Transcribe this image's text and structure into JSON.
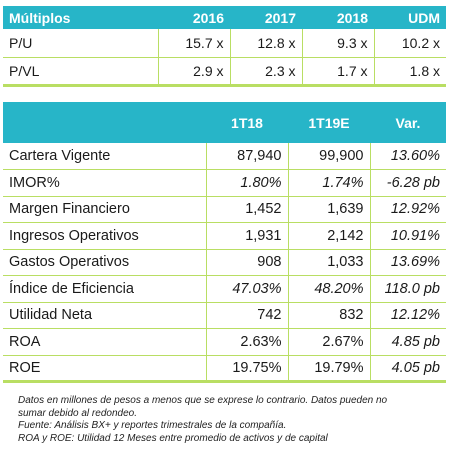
{
  "multiples_table": {
    "headers": [
      "Múltiplos",
      "2016",
      "2017",
      "2018",
      "UDM"
    ],
    "rows": [
      {
        "label": "P/U",
        "values": [
          "15.7 x",
          "12.8 x",
          "9.3 x",
          "10.2 x"
        ]
      },
      {
        "label": "P/VL",
        "values": [
          "2.9 x",
          "2.3 x",
          "1.7 x",
          "1.8 x"
        ]
      }
    ]
  },
  "results_table": {
    "headers": [
      "",
      "1T18",
      "1T19E",
      "Var."
    ],
    "rows": [
      {
        "label": "Cartera Vigente",
        "v1": "87,940",
        "v2": "99,900",
        "var": "13.60%"
      },
      {
        "label": "IMOR%",
        "v1": "1.80%",
        "v2": "1.74%",
        "var": "-6.28 pb"
      },
      {
        "label": "Margen Financiero",
        "v1": "1,452",
        "v2": "1,639",
        "var": "12.92%"
      },
      {
        "label": "Ingresos Operativos",
        "v1": "1,931",
        "v2": "2,142",
        "var": "10.91%"
      },
      {
        "label": "Gastos Operativos",
        "v1": "908",
        "v2": "1,033",
        "var": "13.69%"
      },
      {
        "label": "Índice de Eficiencia",
        "v1": "47.03%",
        "v2": "48.20%",
        "var": "118.0 pb"
      },
      {
        "label": "Utilidad Neta",
        "v1": "742",
        "v2": "832",
        "var": "12.12%"
      },
      {
        "label": "ROA",
        "v1": "2.63%",
        "v2": "2.67%",
        "var": "4.85 pb"
      },
      {
        "label": "ROE",
        "v1": "19.75%",
        "v2": "19.79%",
        "var": "4.05 pb"
      }
    ]
  },
  "notes": [
    "Datos en millones de pesos a menos que se exprese lo contrario. Datos pueden no",
    "sumar debido al redondeo.",
    "Fuente: Análisis BX+ y reportes trimestrales de la compañía.",
    "ROA y ROE: Utilidad 12 Meses entre promedio de activos y de capital"
  ],
  "colors": {
    "header_bg": "#27b5c8",
    "rule": "#b9de63"
  }
}
